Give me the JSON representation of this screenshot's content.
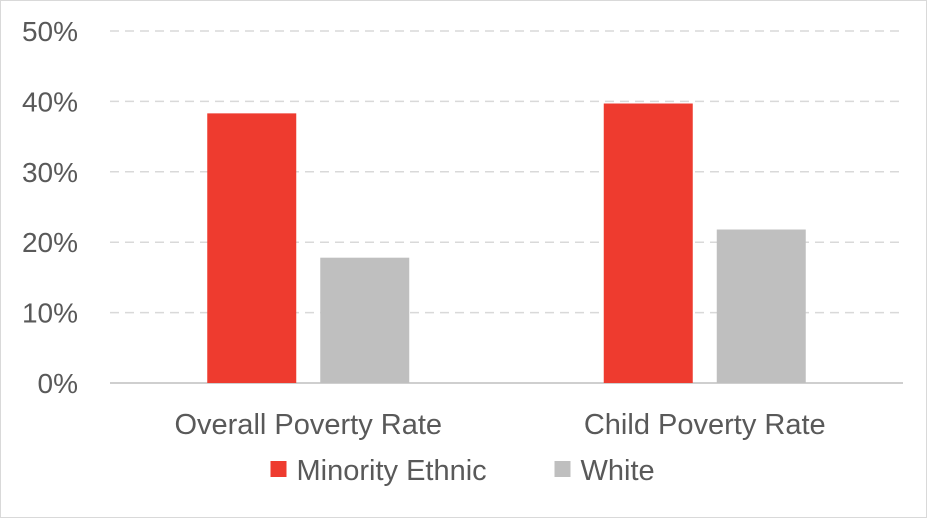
{
  "chart_data": {
    "type": "bar",
    "categories": [
      "Overall Poverty Rate",
      "Child Poverty Rate"
    ],
    "series": [
      {
        "name": "Minority Ethnic",
        "values": [
          38.3,
          39.7
        ]
      },
      {
        "name": "White",
        "values": [
          17.8,
          21.8
        ]
      }
    ],
    "ylim": [
      0,
      50
    ],
    "yticks": [
      "0%",
      "10%",
      "20%",
      "30%",
      "40%",
      "50%"
    ],
    "grid": true,
    "legend": "bottom"
  },
  "colors": {
    "Minority Ethnic": "#ee3b2f",
    "White": "#bfbfbf",
    "gridline": "#d9d9d9",
    "axis": "#bfbfbf"
  }
}
